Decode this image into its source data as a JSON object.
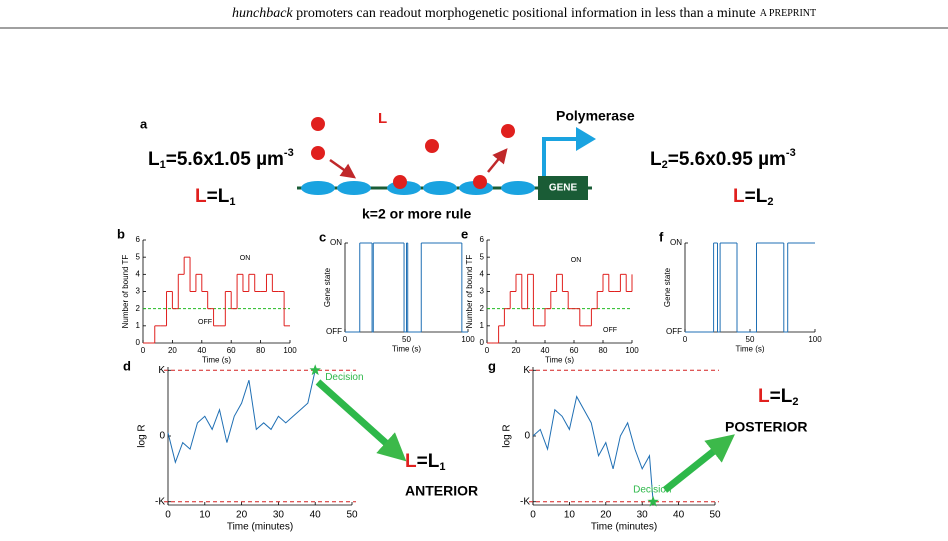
{
  "header": {
    "title_italic": "hunchback",
    "title": " promoters can readout morphogenetic positional information in less than a minute",
    "tag": "A PREPRINT"
  },
  "diagram": {
    "panel": "a",
    "ligand": "L",
    "polymerase": "Polymerase",
    "gene": "GENE",
    "rule": "k=2 or more rule",
    "left": {
      "symbol": "L",
      "sub": "1",
      "expr": "=5.6x1.05 µm",
      "sup": "-3",
      "eq_symbol": "L",
      "eq": "=L",
      "eq_sub": "1"
    },
    "right": {
      "symbol": "L",
      "sub": "2",
      "expr": "=5.6x0.95 µm",
      "sup": "-3",
      "eq_symbol": "L",
      "eq": "=L",
      "eq_sub": "2"
    }
  },
  "chart_data": [
    {
      "type": "step",
      "panel": "b",
      "xlabel": "Time (s)",
      "ylabel": "Number of bound TF",
      "xlim": [
        0,
        100
      ],
      "ylim": [
        0,
        6
      ],
      "xticks": [
        0,
        20,
        40,
        60,
        80,
        100
      ],
      "yticks": [
        0,
        1,
        2,
        3,
        4,
        5,
        6
      ],
      "threshold": 2,
      "threshold_color": "#22bb22",
      "annotations": [
        "ON",
        "OFF"
      ],
      "x": [
        0,
        4,
        8,
        12,
        16,
        20,
        24,
        28,
        32,
        36,
        40,
        44,
        48,
        52,
        56,
        60,
        64,
        68,
        72,
        76,
        80,
        84,
        88,
        92,
        96,
        100
      ],
      "series": [
        {
          "color": "#e0201e",
          "values": [
            0,
            0,
            1,
            1,
            3,
            2,
            4,
            5,
            3,
            4,
            3,
            2,
            1,
            1,
            3,
            2,
            4,
            3,
            4,
            3,
            3,
            4,
            3,
            3,
            1,
            1
          ]
        }
      ]
    },
    {
      "type": "step",
      "panel": "c",
      "xlabel": "Time (s)",
      "ylabel": "Gene state",
      "xlim": [
        0,
        100
      ],
      "ylim": [
        0,
        1
      ],
      "xticks": [
        0,
        50,
        100
      ],
      "yticks": [
        {
          "value": 0,
          "label": "OFF"
        },
        {
          "value": 1,
          "label": "ON"
        }
      ],
      "x": [
        0,
        12,
        22,
        23,
        48,
        50,
        51,
        62,
        95
      ],
      "series": [
        {
          "color": "#1f6fb4",
          "values": [
            0,
            1,
            0,
            1,
            0,
            1,
            0,
            1,
            0
          ]
        }
      ]
    },
    {
      "type": "step",
      "panel": "e",
      "xlabel": "Time (s)",
      "ylabel": "Number of bound TF",
      "xlim": [
        0,
        100
      ],
      "ylim": [
        0,
        6
      ],
      "xticks": [
        0,
        20,
        40,
        60,
        80,
        100
      ],
      "yticks": [
        0,
        1,
        2,
        3,
        4,
        5,
        6
      ],
      "threshold": 2,
      "threshold_color": "#22bb22",
      "annotations": [
        "ON",
        "OFF"
      ],
      "x": [
        0,
        4,
        8,
        12,
        16,
        20,
        24,
        28,
        32,
        36,
        40,
        44,
        48,
        52,
        56,
        60,
        64,
        68,
        72,
        76,
        80,
        84,
        88,
        92,
        96,
        100
      ],
      "series": [
        {
          "color": "#e0201e",
          "values": [
            0,
            0,
            1,
            2,
            3,
            4,
            2,
            4,
            1,
            1,
            2,
            3,
            4,
            3,
            2,
            2,
            1,
            1,
            2,
            3,
            4,
            3,
            3,
            4,
            3,
            4
          ]
        }
      ]
    },
    {
      "type": "step",
      "panel": "f",
      "xlabel": "Time (s)",
      "ylabel": "Gene state",
      "xlim": [
        0,
        100
      ],
      "ylim": [
        0,
        1
      ],
      "xticks": [
        0,
        50,
        100
      ],
      "yticks": [
        {
          "value": 0,
          "label": "OFF"
        },
        {
          "value": 1,
          "label": "ON"
        }
      ],
      "x": [
        0,
        22,
        25,
        27,
        40,
        55,
        76,
        79
      ],
      "series": [
        {
          "color": "#1f6fb4",
          "values": [
            0,
            1,
            0,
            1,
            0,
            1,
            0,
            1
          ]
        }
      ]
    },
    {
      "type": "line",
      "panel": "d",
      "xlabel": "Time (minutes)",
      "ylabel": "log R",
      "xlim": [
        0,
        50
      ],
      "ylim": [
        -1.05,
        1.05
      ],
      "xticks": [
        0,
        10,
        20,
        30,
        40,
        50
      ],
      "yticks": [
        {
          "value": -1,
          "label": "-K"
        },
        0,
        {
          "value": 1,
          "label": "K"
        }
      ],
      "reference_lines": [
        -1,
        1
      ],
      "reference_color": "#d42020",
      "annotation": "Decision",
      "decision_color": "#2eb84a",
      "outcome": {
        "symbol": "L",
        "eq": "=L",
        "sub": "1",
        "label": "ANTERIOR"
      },
      "x": [
        0,
        2,
        4,
        6,
        8,
        10,
        12,
        14,
        16,
        18,
        20,
        22,
        24,
        26,
        28,
        30,
        32,
        34,
        36,
        38,
        40
      ],
      "series": [
        {
          "color": "#1f6fb4",
          "values": [
            0.05,
            -0.4,
            -0.1,
            -0.2,
            0.2,
            0.3,
            0.1,
            0.4,
            -0.1,
            0.3,
            0.5,
            0.85,
            0.1,
            0.2,
            0.1,
            0.3,
            0.2,
            0.3,
            0.4,
            0.5,
            1.0
          ]
        }
      ]
    },
    {
      "type": "line",
      "panel": "g",
      "xlabel": "Time (minutes)",
      "ylabel": "log R",
      "xlim": [
        0,
        50
      ],
      "ylim": [
        -1.05,
        1.05
      ],
      "xticks": [
        0,
        10,
        20,
        30,
        40,
        50
      ],
      "yticks": [
        {
          "value": -1,
          "label": "-K"
        },
        0,
        {
          "value": 1,
          "label": "K"
        }
      ],
      "reference_lines": [
        -1,
        1
      ],
      "reference_color": "#d42020",
      "annotation": "Decision",
      "decision_color": "#2eb84a",
      "outcome": {
        "symbol": "L",
        "eq": "=L",
        "sub": "2",
        "label": "POSTERIOR"
      },
      "x": [
        0,
        2,
        4,
        6,
        8,
        10,
        12,
        14,
        16,
        18,
        20,
        22,
        24,
        26,
        28,
        30,
        32,
        33
      ],
      "series": [
        {
          "color": "#1f6fb4",
          "values": [
            0.0,
            0.1,
            -0.2,
            0.4,
            0.3,
            0.1,
            0.6,
            0.4,
            0.2,
            -0.3,
            -0.1,
            -0.5,
            0.0,
            0.2,
            -0.2,
            -0.5,
            -0.3,
            -1.0
          ]
        }
      ]
    }
  ]
}
